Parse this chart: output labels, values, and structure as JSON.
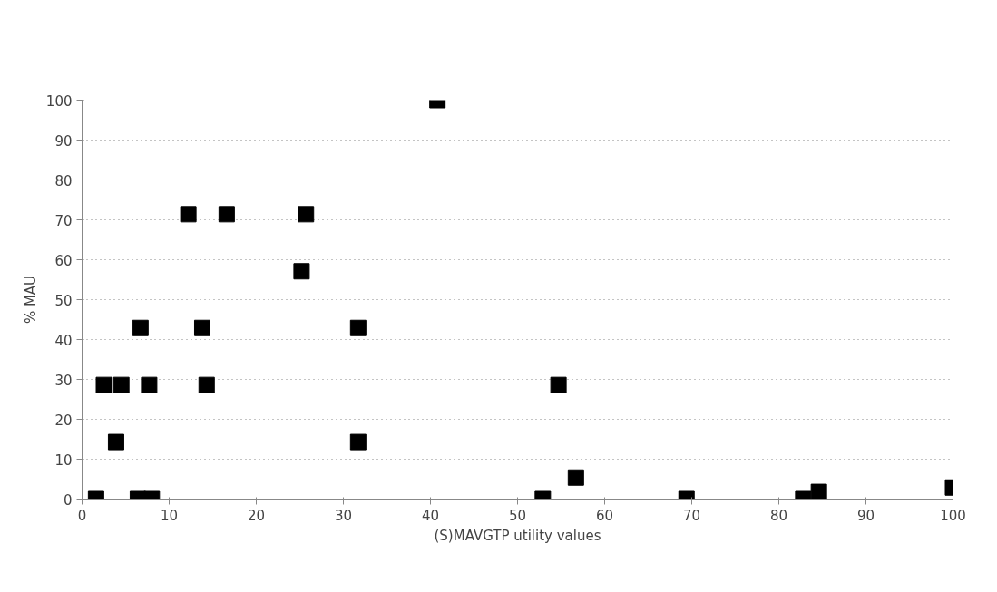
{
  "chart_data": {
    "type": "scatter",
    "xlabel": "(S)MAVGTP utility values",
    "ylabel": "% MAU",
    "x": [
      1.6,
      2.5,
      4.5,
      3.9,
      6.7,
      7.7,
      6.4,
      8.0,
      12.2,
      13.8,
      14.3,
      16.6,
      25.2,
      25.7,
      31.7,
      31.7,
      40.8,
      52.9,
      54.7,
      56.7,
      69.4,
      82.8,
      84.6,
      100
    ],
    "values": [
      0,
      28.6,
      28.6,
      14.3,
      42.9,
      28.6,
      0,
      0,
      71.4,
      42.9,
      28.6,
      71.4,
      57.1,
      71.4,
      42.9,
      14.3,
      100,
      0,
      28.6,
      5.4,
      0,
      0,
      1.8,
      2.9
    ],
    "color": "#000000",
    "marker": "square",
    "xlim": [
      0,
      100
    ],
    "xticks": [
      0,
      10,
      20,
      30,
      40,
      50,
      60,
      70,
      80,
      90,
      100
    ],
    "ylim": [
      0,
      100
    ],
    "yticks": [
      0,
      10,
      20,
      30,
      40,
      50,
      60,
      70,
      80,
      90,
      100
    ],
    "grid": "y"
  }
}
